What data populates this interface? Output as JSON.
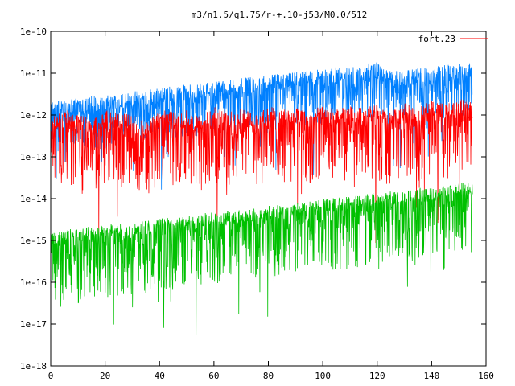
{
  "chart_data": {
    "type": "line",
    "title": "m3/n1.5/q1.75/r-+.10-j53/M0.0/512",
    "xlabel": "",
    "ylabel": "",
    "xlim": [
      0,
      160
    ],
    "ylim": [
      1e-18,
      1e-10
    ],
    "y_scale": "log",
    "x_ticks": [
      0,
      20,
      40,
      60,
      80,
      100,
      120,
      140,
      160
    ],
    "y_ticks": [
      {
        "value": 1e-18,
        "label": "1e-18"
      },
      {
        "value": 1e-17,
        "label": "1e-17"
      },
      {
        "value": 1e-16,
        "label": "1e-16"
      },
      {
        "value": 1e-15,
        "label": "1e-15"
      },
      {
        "value": 1e-14,
        "label": "1e-14"
      },
      {
        "value": 1e-13,
        "label": "1e-13"
      },
      {
        "value": 1e-12,
        "label": "1e-12"
      },
      {
        "value": 1e-11,
        "label": "1e-11"
      },
      {
        "value": 1e-10,
        "label": "1e-10"
      }
    ],
    "grid": false,
    "legend": {
      "position": "top-right",
      "entries": [
        {
          "name": "fort.23",
          "color": "#ff0000"
        }
      ]
    },
    "series": [
      {
        "name": "fort.23",
        "color": "#ff0000",
        "x": [
          0,
          5,
          10,
          15,
          20,
          25,
          30,
          35,
          40,
          45,
          50,
          55,
          60,
          65,
          70,
          75,
          80,
          85,
          90,
          95,
          100,
          105,
          110,
          115,
          120,
          125,
          130,
          135,
          140,
          145,
          150,
          155
        ],
        "y": [
          4e-13,
          6e-13,
          5e-13,
          3.5e-13,
          6e-13,
          5e-13,
          4.5e-13,
          3e-13,
          6.5e-13,
          5.5e-13,
          6e-13,
          4e-13,
          7e-13,
          5.5e-13,
          6.5e-13,
          5e-13,
          7.5e-13,
          6e-13,
          7e-13,
          5e-13,
          8e-13,
          6e-13,
          7.5e-13,
          6.5e-13,
          8.5e-13,
          5e-13,
          9e-13,
          7e-13,
          1e-12,
          8e-13,
          1.1e-12,
          9e-13
        ]
      },
      {
        "color": "#0080ff",
        "x": [
          0,
          5,
          10,
          15,
          20,
          25,
          30,
          35,
          40,
          45,
          50,
          55,
          60,
          65,
          70,
          75,
          80,
          85,
          90,
          95,
          100,
          105,
          110,
          115,
          120,
          125,
          130,
          135,
          140,
          145,
          150,
          155
        ],
        "y": [
          1e-12,
          1.1e-12,
          1.2e-12,
          1.3e-12,
          1.4e-12,
          1.5e-12,
          1.7e-12,
          1.8e-12,
          2e-12,
          2.2e-12,
          2.4e-12,
          2.6e-12,
          2.9e-12,
          3.1e-12,
          3.4e-12,
          3.7e-12,
          4e-12,
          4.4e-12,
          4.8e-12,
          5.2e-12,
          5.7e-12,
          6.2e-12,
          6.8e-12,
          7.4e-12,
          8.1e-12,
          5e-12,
          5.5e-12,
          6e-12,
          6.6e-12,
          7.2e-12,
          7.9e-12,
          8.6e-12
        ]
      },
      {
        "color": "#00c000",
        "x": [
          0,
          5,
          10,
          15,
          20,
          25,
          30,
          35,
          40,
          45,
          50,
          55,
          60,
          65,
          70,
          75,
          80,
          85,
          90,
          95,
          100,
          105,
          110,
          115,
          120,
          125,
          130,
          135,
          140,
          145,
          150,
          155
        ],
        "y": [
          8e-16,
          9e-16,
          1e-15,
          1.1e-15,
          1.2e-15,
          1.3e-15,
          1.4e-15,
          1.5e-15,
          1.7e-15,
          1.8e-15,
          2e-15,
          2.2e-15,
          2.4e-15,
          2.6e-15,
          2.8e-15,
          3.1e-15,
          3.4e-15,
          3.7e-15,
          4e-15,
          4.4e-15,
          4.8e-15,
          5.3e-15,
          5.8e-15,
          6.3e-15,
          6.9e-15,
          7.5e-15,
          8.2e-15,
          9e-15,
          9.8e-15,
          1.1e-14,
          1.2e-14,
          1.3e-14
        ]
      }
    ]
  }
}
